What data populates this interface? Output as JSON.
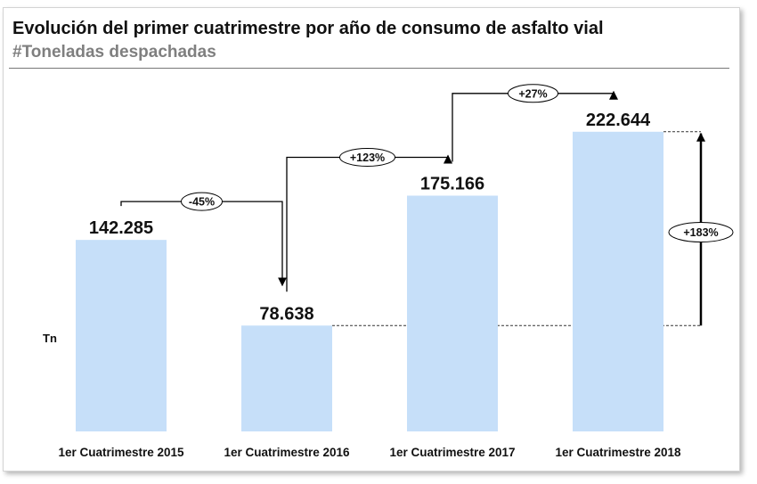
{
  "chart_data": {
    "type": "bar",
    "title": "Evolución del primer cuatrimestre por año de consumo de asfalto vial",
    "subtitle": "#Toneladas despachadas",
    "ylabel": "Tn",
    "categories": [
      "1er Cuatrimestre 2015",
      "1er Cuatrimestre 2016",
      "1er Cuatrimestre 2017",
      "1er Cuatrimestre 2018"
    ],
    "values": [
      142285,
      78638,
      175166,
      222644
    ],
    "value_labels": [
      "142.285",
      "78.638",
      "175.166",
      "222.644"
    ],
    "changes": [
      {
        "from": 0,
        "to": 1,
        "label": "-45%"
      },
      {
        "from": 1,
        "to": 2,
        "label": "+123%"
      },
      {
        "from": 2,
        "to": 3,
        "label": "+27%"
      }
    ],
    "overall_change": {
      "from": 1,
      "to": 3,
      "label": "+183%"
    },
    "bar_color": "#c6dff9",
    "grid": false,
    "legend": "none"
  }
}
